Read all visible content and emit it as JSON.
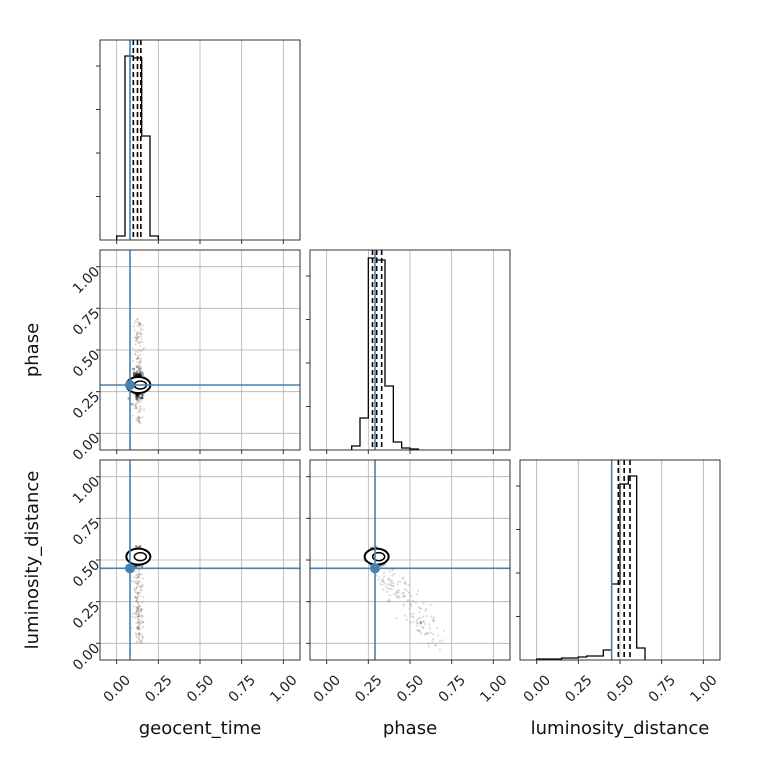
{
  "chart_data": {
    "type": "corner",
    "parameters": [
      "geocent_time",
      "phase",
      "luminosity_distance"
    ],
    "axis_range": [
      -0.1,
      1.1
    ],
    "tick_values": [
      0.0,
      0.25,
      0.5,
      0.75,
      1.0
    ],
    "tick_labels": [
      "0.00",
      "0.25",
      "0.50",
      "0.75",
      "1.00"
    ],
    "grid": true,
    "injection_color": "#4682b4",
    "hist_color": "#000000",
    "injection": {
      "geocent_time": 0.08,
      "phase": 0.29,
      "luminosity_distance": 0.45
    },
    "quantiles": {
      "geocent_time": [
        0.1,
        0.125,
        0.145
      ],
      "phase": [
        0.275,
        0.3,
        0.33
      ],
      "luminosity_distance": [
        0.49,
        0.525,
        0.56
      ]
    },
    "histograms": {
      "geocent_time": {
        "bin_edges": [
          0.0,
          0.05,
          0.1,
          0.15,
          0.2,
          0.25
        ],
        "counts": [
          0.02,
          0.92,
          0.91,
          0.52,
          0.02
        ]
      },
      "phase": {
        "bin_edges": [
          0.15,
          0.2,
          0.25,
          0.3,
          0.35,
          0.4,
          0.45,
          0.5,
          0.55
        ],
        "counts": [
          0.02,
          0.16,
          0.96,
          0.95,
          0.32,
          0.04,
          0.01,
          0.005
        ]
      },
      "luminosity_distance": {
        "bin_edges": [
          0.0,
          0.05,
          0.1,
          0.15,
          0.2,
          0.25,
          0.3,
          0.35,
          0.4,
          0.45,
          0.5,
          0.55,
          0.6,
          0.65
        ],
        "counts": [
          0.005,
          0.005,
          0.005,
          0.01,
          0.01,
          0.015,
          0.02,
          0.02,
          0.05,
          0.38,
          0.88,
          0.92,
          0.06
        ]
      }
    },
    "scatter_2d": {
      "phase_vs_geocent_time": {
        "x_param": "geocent_time",
        "y_param": "phase",
        "core_center": [
          0.13,
          0.29
        ],
        "core_spread": [
          0.03,
          0.06
        ],
        "tail": {
          "x_range": [
            0.08,
            0.2
          ],
          "y_range": [
            0.05,
            0.7
          ]
        }
      },
      "luminosity_distance_vs_geocent_time": {
        "x_param": "geocent_time",
        "y_param": "luminosity_distance",
        "core_center": [
          0.13,
          0.52
        ],
        "core_spread": [
          0.03,
          0.04
        ],
        "tail": {
          "x_range": [
            0.08,
            0.2
          ],
          "y_range": [
            0.0,
            0.5
          ]
        }
      },
      "luminosity_distance_vs_phase": {
        "x_param": "phase",
        "y_param": "luminosity_distance",
        "core_center": [
          0.3,
          0.52
        ],
        "core_spread": [
          0.05,
          0.04
        ],
        "tail": {
          "x_range": [
            0.3,
            0.72
          ],
          "y_range": [
            0.0,
            0.5
          ]
        }
      }
    }
  }
}
